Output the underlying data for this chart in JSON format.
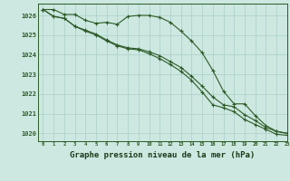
{
  "bg_color": "#cce8e0",
  "grid_color": "#aacfc8",
  "line_color": "#2d5a27",
  "xlabel": "Graphe pression niveau de la mer (hPa)",
  "xlabel_fontsize": 6.5,
  "xlabel_color": "#1a3a18",
  "ylabel_ticks": [
    1020,
    1021,
    1022,
    1023,
    1024,
    1025,
    1026
  ],
  "xlim": [
    -0.5,
    23
  ],
  "ylim": [
    1019.6,
    1026.6
  ],
  "x": [
    0,
    1,
    2,
    3,
    4,
    5,
    6,
    7,
    8,
    9,
    10,
    11,
    12,
    13,
    14,
    15,
    16,
    17,
    18,
    19,
    20,
    21,
    22,
    23
  ],
  "line1": [
    1026.3,
    1026.3,
    1026.05,
    1026.05,
    1025.75,
    1025.6,
    1025.65,
    1025.55,
    1025.95,
    1026.0,
    1026.0,
    1025.9,
    1025.65,
    1025.2,
    1024.7,
    1024.1,
    1023.2,
    1022.15,
    1021.5,
    1021.5,
    1020.9,
    1020.4,
    1020.1,
    1020.0
  ],
  "line2": [
    1026.3,
    1025.95,
    1025.85,
    1025.45,
    1025.25,
    1025.05,
    1024.75,
    1024.5,
    1024.35,
    1024.3,
    1024.15,
    1023.95,
    1023.65,
    1023.35,
    1022.9,
    1022.4,
    1021.85,
    1021.45,
    1021.35,
    1020.95,
    1020.65,
    1020.3,
    1020.1,
    1020.0
  ],
  "line3": [
    1026.3,
    1025.95,
    1025.85,
    1025.45,
    1025.2,
    1025.0,
    1024.7,
    1024.45,
    1024.3,
    1024.25,
    1024.05,
    1023.8,
    1023.5,
    1023.15,
    1022.7,
    1022.1,
    1021.45,
    1021.3,
    1021.1,
    1020.7,
    1020.45,
    1020.2,
    1019.95,
    1019.9
  ]
}
